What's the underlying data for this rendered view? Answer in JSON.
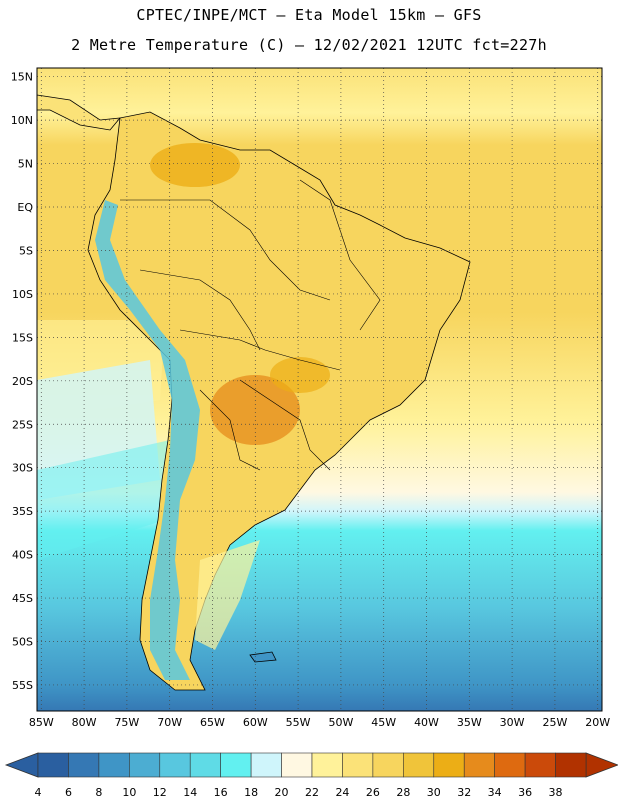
{
  "header": {
    "line1": "CPTEC/INPE/MCT –  Eta Model 15km – GFS",
    "line2": "2 Metre Temperature (C) – 12/02/2021 12UTC fct=227h"
  },
  "map": {
    "lat_labels": [
      "15N",
      "10N",
      "5N",
      "EQ",
      "5S",
      "10S",
      "15S",
      "20S",
      "25S",
      "30S",
      "35S",
      "40S",
      "45S",
      "50S",
      "55S"
    ],
    "lon_labels": [
      "85W",
      "80W",
      "75W",
      "70W",
      "65W",
      "60W",
      "55W",
      "50W",
      "45W",
      "40W",
      "35W",
      "30W",
      "25W",
      "20W"
    ],
    "lat_range": [
      16,
      -58
    ],
    "lon_range": [
      -85.5,
      -19.5
    ]
  },
  "colorbar": {
    "labels": [
      "4",
      "6",
      "8",
      "10",
      "12",
      "14",
      "16",
      "18",
      "20",
      "22",
      "24",
      "26",
      "28",
      "30",
      "32",
      "34",
      "36",
      "38"
    ],
    "colors": [
      "#2a5fa0",
      "#3578b4",
      "#3f95c6",
      "#4cadd2",
      "#58c7df",
      "#5fdbe6",
      "#62f0f0",
      "#cff5fb",
      "#fff8e2",
      "#fff29a",
      "#fbe278",
      "#f7d55e",
      "#f0c43a",
      "#ecae16",
      "#e68b1c",
      "#de6a10",
      "#cb4a0a",
      "#b13200"
    ]
  },
  "icons": {
    "arrow_left": "colorbar-left-arrow",
    "arrow_right": "colorbar-right-arrow"
  }
}
